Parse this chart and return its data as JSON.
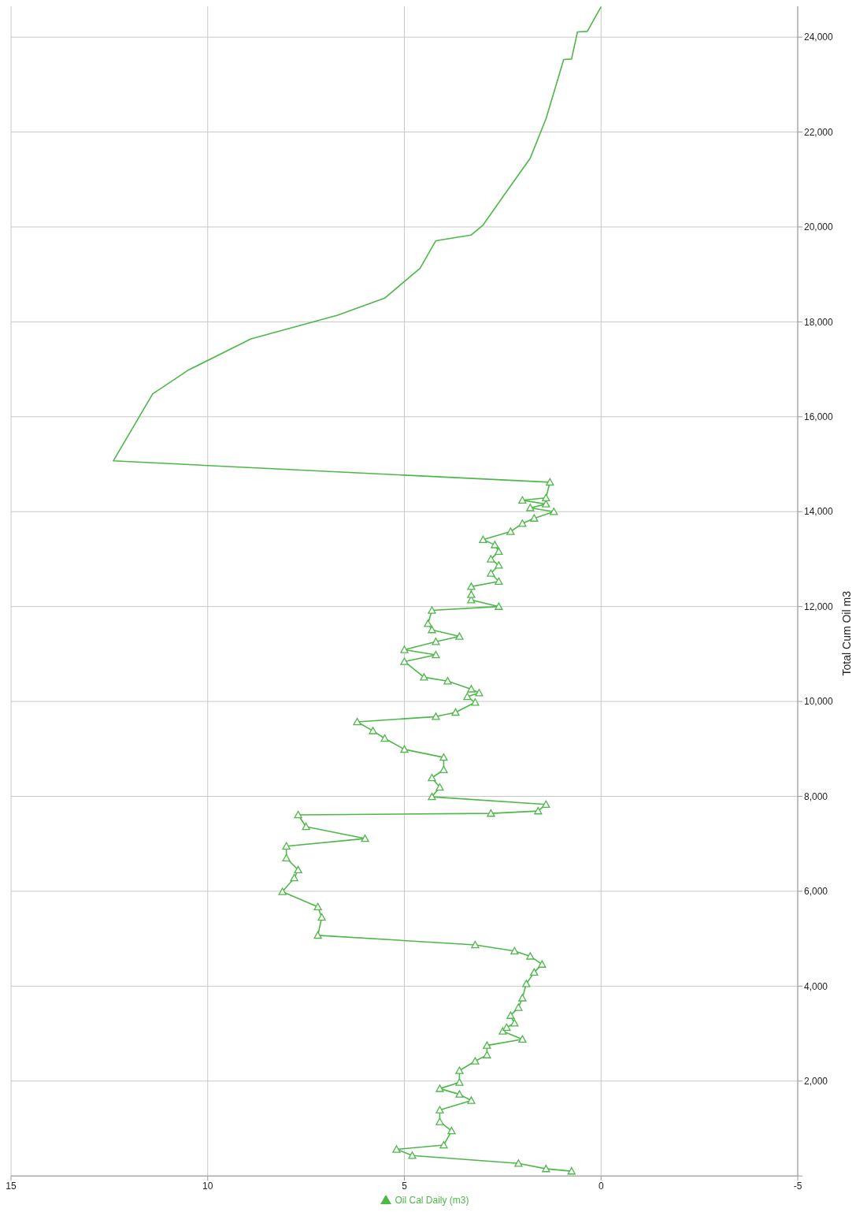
{
  "chart_data": {
    "type": "line",
    "ylabel": "Total Cum Oil m3",
    "ylim": [
      0,
      24650
    ],
    "yticks": [
      {
        "value": 0,
        "label": null
      },
      {
        "value": 2000,
        "label": "2,000"
      },
      {
        "value": 4000,
        "label": "4,000"
      },
      {
        "value": 6000,
        "label": "6,000"
      },
      {
        "value": 8000,
        "label": "8,000"
      },
      {
        "value": 10000,
        "label": "10,000"
      },
      {
        "value": 12000,
        "label": "12,000"
      },
      {
        "value": 14000,
        "label": "14,000"
      },
      {
        "value": 16000,
        "label": "16,000"
      },
      {
        "value": 18000,
        "label": "18,000"
      },
      {
        "value": 20000,
        "label": "20,000"
      },
      {
        "value": 22000,
        "label": "22,000"
      },
      {
        "value": 24000,
        "label": "24,000"
      }
    ],
    "xlim": [
      15,
      -5
    ],
    "xticks": [
      15,
      10,
      5,
      0,
      -5
    ],
    "grid": true,
    "legend": "bottom",
    "series": [
      {
        "name": "Oil Cal Daily (m3)",
        "color": "#4cb848",
        "marker": "triangle",
        "values": [
          100,
          150,
          265,
          430,
          560,
          650,
          950,
          1140,
          1390,
          1590,
          1720,
          1840,
          1970,
          2220,
          2420,
          2550,
          2750,
          2880,
          3050,
          3130,
          3220,
          3380,
          3550,
          3750,
          4050,
          4290,
          4460,
          4630,
          4740,
          4870,
          5070,
          5450,
          5670,
          5990,
          6280,
          6450,
          6700,
          6950,
          7110,
          7360,
          7610,
          7640,
          7690,
          7830,
          7990,
          8190,
          8390,
          8560,
          8820,
          8990,
          9220,
          9380,
          9570,
          9680,
          9770,
          9980,
          10100,
          10180,
          10260,
          10430,
          10510,
          10840,
          10980,
          11090,
          11260,
          11370,
          11510,
          11640,
          11920,
          12000,
          12140,
          12250,
          12420,
          12530,
          12700,
          12870,
          13000,
          13160,
          13300,
          13410,
          13580,
          13750,
          13860,
          14000,
          14080,
          14160,
          14240,
          14290,
          14620
        ],
        "x": [
          0.75,
          1.4,
          2.1,
          4.8,
          5.2,
          4.0,
          3.8,
          4.1,
          4.1,
          3.3,
          3.6,
          4.1,
          3.6,
          3.6,
          3.2,
          2.9,
          2.9,
          2.0,
          2.5,
          2.4,
          2.2,
          2.3,
          2.1,
          2.0,
          1.9,
          1.7,
          1.5,
          1.8,
          2.2,
          3.2,
          7.2,
          7.1,
          7.2,
          8.1,
          7.8,
          7.7,
          8.0,
          8.0,
          6.0,
          7.5,
          7.7,
          2.8,
          1.6,
          1.4,
          4.3,
          4.1,
          4.3,
          4.0,
          4.0,
          5.0,
          5.5,
          5.8,
          6.2,
          4.2,
          3.7,
          3.2,
          3.4,
          3.1,
          3.3,
          3.9,
          4.5,
          5.0,
          4.2,
          5.0,
          4.2,
          3.6,
          4.3,
          4.4,
          4.3,
          2.6,
          3.3,
          3.3,
          3.3,
          2.6,
          2.8,
          2.6,
          2.8,
          2.6,
          2.7,
          3.0,
          2.3,
          2.0,
          1.7,
          1.2,
          1.8,
          1.4,
          2.0,
          1.4,
          1.3
        ]
      },
      {
        "color": "#4cb848",
        "marker": "none",
        "values": [
          14620,
          15070,
          16480,
          16980,
          17640,
          18140,
          18500,
          19130,
          19710,
          19830,
          20040,
          20630,
          21450,
          22280,
          23110,
          23530,
          23540,
          24110,
          24120,
          24640
        ],
        "x": [
          1.3,
          12.4,
          11.4,
          10.5,
          8.9,
          6.7,
          5.5,
          4.6,
          4.2,
          3.3,
          3.0,
          2.5,
          1.8,
          1.4,
          1.1,
          0.95,
          0.75,
          0.6,
          0.35,
          0.0
        ]
      }
    ]
  }
}
